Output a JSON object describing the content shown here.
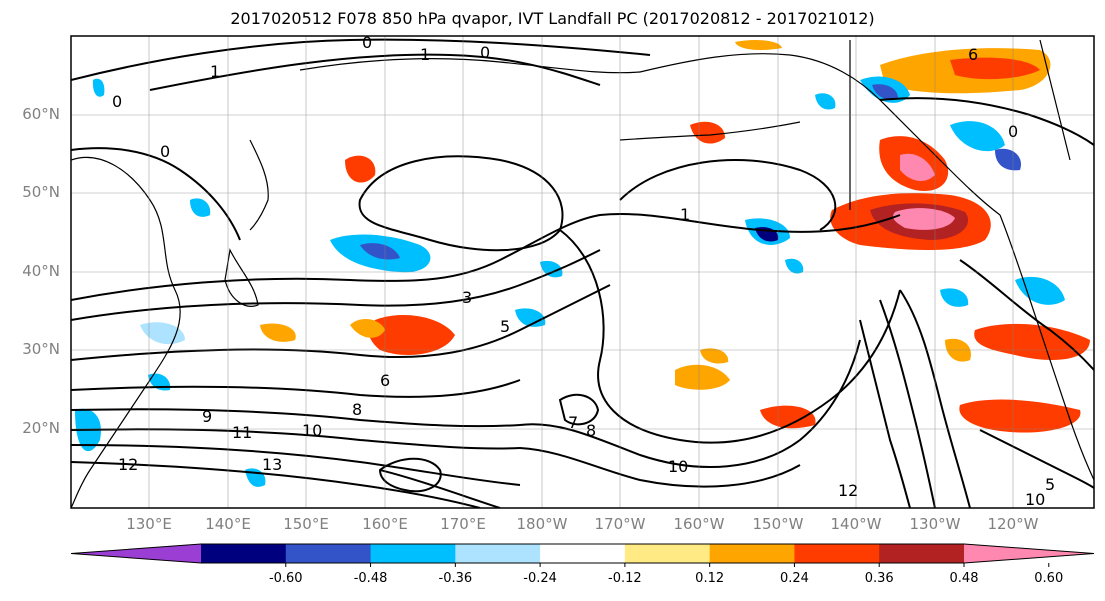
{
  "title": "2017020512 F078 850 hPa qvapor, IVT Landfall PC (2017020812 - 2017021012)",
  "lat_labels": [
    "60°N",
    "50°N",
    "40°N",
    "30°N",
    "20°N"
  ],
  "lon_labels": [
    "130°E",
    "140°E",
    "150°E",
    "160°E",
    "170°E",
    "180°W",
    "170°W",
    "160°W",
    "150°W",
    "140°W",
    "130°W",
    "120°W"
  ],
  "contour_labels": [
    "0",
    "1",
    "0",
    "0",
    "0",
    "1",
    "3",
    "5",
    "6",
    "8",
    "9",
    "10",
    "11",
    "12",
    "13",
    "10",
    "12",
    "8",
    "7",
    "1",
    "0",
    "10",
    "5",
    "6"
  ],
  "colorbar": {
    "colors": [
      "#9b3fd4",
      "#00007f",
      "#3353c8",
      "#00bfff",
      "#aee3ff",
      "#ffffff",
      "#ffea84",
      "#ffa500",
      "#ff3c00",
      "#b22222",
      "#ff88b0"
    ],
    "tick_labels": [
      "-0.60",
      "-0.48",
      "-0.36",
      "-0.24",
      "-0.12",
      "0.12",
      "0.24",
      "0.36",
      "0.48",
      "0.60"
    ]
  }
}
